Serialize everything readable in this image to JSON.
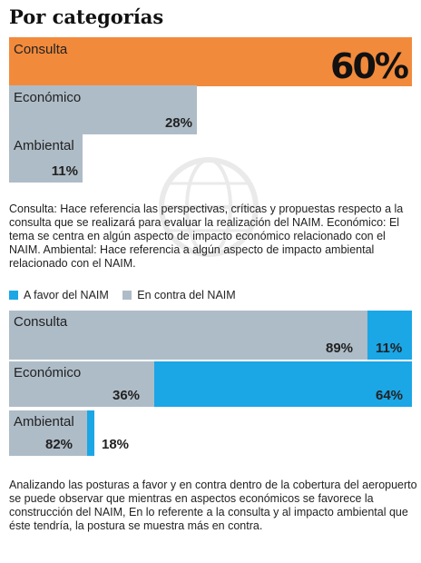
{
  "title": "Por categorías",
  "colors": {
    "orange": "#F28A3C",
    "gray": "#AEBCC7",
    "blue": "#1BA6E6"
  },
  "chart_data": [
    {
      "type": "bar",
      "categories": [
        "Consulta",
        "Económico",
        "Ambiental"
      ],
      "values": [
        60,
        28,
        11
      ],
      "value_labels": [
        "60%",
        "28%",
        "11%"
      ],
      "xlim": [
        0,
        60
      ]
    },
    {
      "type": "bar",
      "stacked": true,
      "categories": [
        "Consulta",
        "Económico",
        "Ambiental"
      ],
      "series": [
        {
          "name": "En contra del NAIM",
          "values": [
            89,
            36,
            82
          ],
          "labels": [
            "89%",
            "36%",
            "82%"
          ]
        },
        {
          "name": "A favor del NAIM",
          "values": [
            11,
            64,
            18
          ],
          "labels": [
            "11%",
            "64%",
            "18%"
          ]
        }
      ],
      "xlim": [
        0,
        100
      ]
    }
  ],
  "description_1": "Consulta: Hace referencia las perspectivas, críticas y propuestas respecto a la consulta que se realizará para evaluar la realización del NAIM. Económico: El tema se centra en algún aspecto de impacto económico relacionado con el NAIM. Ambiental: Hace referencia a algún aspecto de impacto ambiental relacionado con el NAIM.",
  "legend": {
    "favor": "A favor del NAIM",
    "contra": "En contra del NAIM"
  },
  "description_2": "Analizando las posturas a favor y en contra dentro de la cobertura del aeropuerto se puede observar que mientras en aspectos económicos se favorece la construcción del NAIM, En lo referente a la consulta y al impacto ambiental que éste tendría, la postura se muestra más en contra."
}
